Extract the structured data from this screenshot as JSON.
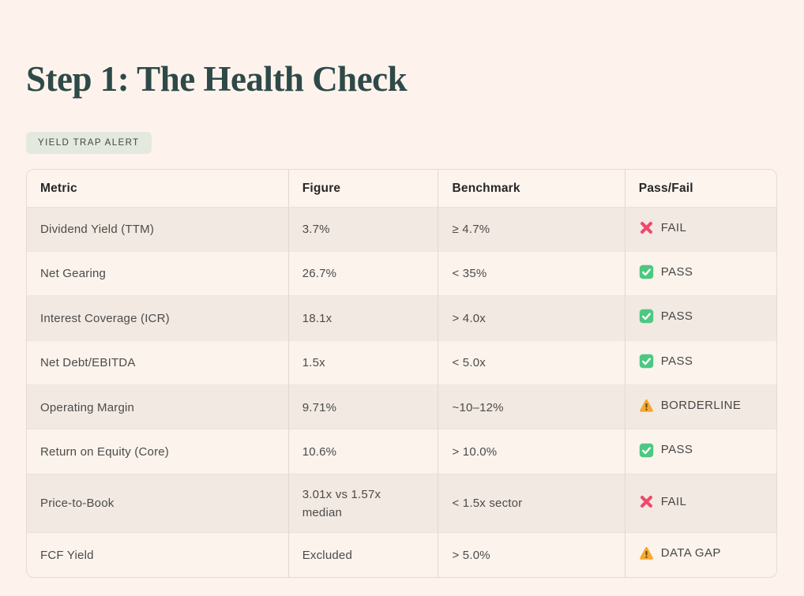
{
  "page": {
    "background_color": "#fdf3ec",
    "title": "Step 1: The Health Check",
    "title_color": "#2e4948"
  },
  "badge": {
    "label": "YIELD TRAP ALERT",
    "background_color": "#e4e9df",
    "text_color": "#41463f"
  },
  "table": {
    "columns": [
      "Metric",
      "Figure",
      "Benchmark",
      "Pass/Fail"
    ],
    "rows": [
      {
        "metric": "Dividend Yield (TTM)",
        "figure": "3.7%",
        "benchmark": "≥ 4.7%",
        "status": "FAIL",
        "icon": "cross-icon"
      },
      {
        "metric": "Net Gearing",
        "figure": "26.7%",
        "benchmark": "< 35%",
        "status": "PASS",
        "icon": "check-icon"
      },
      {
        "metric": "Interest Coverage (ICR)",
        "figure": "18.1x",
        "benchmark": "> 4.0x",
        "status": "PASS",
        "icon": "check-icon"
      },
      {
        "metric": "Net Debt/EBITDA",
        "figure": "1.5x",
        "benchmark": "< 5.0x",
        "status": "PASS",
        "icon": "check-icon"
      },
      {
        "metric": "Operating Margin",
        "figure": "9.71%",
        "benchmark": "~10–12%",
        "status": "BORDERLINE",
        "icon": "warning-icon"
      },
      {
        "metric": "Return on Equity (Core)",
        "figure": "10.6%",
        "benchmark": "> 10.0%",
        "status": "PASS",
        "icon": "check-icon"
      },
      {
        "metric": "Price-to-Book",
        "figure": "3.01x vs 1.57x median",
        "benchmark": "< 1.5x sector",
        "status": "FAIL",
        "icon": "cross-icon"
      },
      {
        "metric": "FCF Yield",
        "figure": "Excluded",
        "benchmark": "> 5.0%",
        "status": "DATA GAP",
        "icon": "warning-icon"
      }
    ]
  },
  "status_colors": {
    "fail_cross": "#f0486d",
    "pass_check": "#4dc882",
    "warning_triangle": "#f7a82d"
  }
}
